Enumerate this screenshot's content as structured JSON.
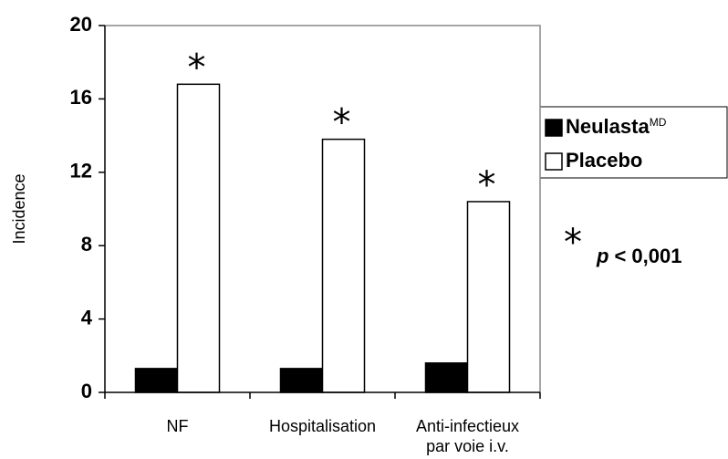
{
  "chart_data": {
    "type": "bar",
    "y_label": "Incidence",
    "categories": [
      "NF",
      "Hospitalisation",
      "Anti-infectieux\npar voie i.v."
    ],
    "series": [
      {
        "name": "Neulasta",
        "name_superscript": "MD",
        "color": "#000000",
        "values": [
          1.3,
          1.3,
          1.6
        ]
      },
      {
        "name": "Placebo",
        "color": "#ffffff",
        "values": [
          16.8,
          13.8,
          10.4
        ]
      }
    ],
    "ylim": [
      0,
      20
    ],
    "yticks": [
      0,
      4,
      8,
      12,
      16,
      20
    ],
    "significance_marker": "*",
    "p_label": "p",
    "p_value": "< 0,001"
  }
}
